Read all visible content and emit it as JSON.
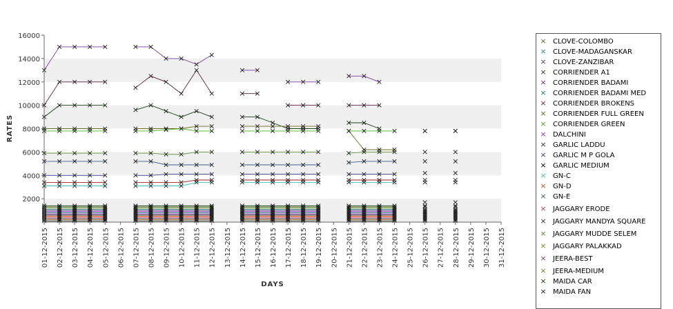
{
  "chart_data": {
    "type": "line",
    "title": "",
    "xlabel": "DAYS",
    "ylabel": "RATES",
    "ylim": [
      0,
      16000
    ],
    "yticks": [
      2000,
      4000,
      6000,
      8000,
      10000,
      12000,
      14000,
      16000
    ],
    "grid": "horizontal bands",
    "legend_position": "right",
    "x": [
      "01-12-2015",
      "02-12-2015",
      "03-12-2015",
      "04-12-2015",
      "05-12-2015",
      "06-12-2015",
      "07-12-2015",
      "08-12-2015",
      "09-12-2015",
      "10-12-2015",
      "11-12-2015",
      "12-12-2015",
      "13-12-2015",
      "14-12-2015",
      "15-12-2015",
      "16-12-2015",
      "17-12-2015",
      "18-12-2015",
      "19-12-2015",
      "20-12-2015",
      "21-12-2015",
      "22-12-2015",
      "23-12-2015",
      "24-12-2015",
      "25-12-2015",
      "26-12-2015",
      "27-12-2015",
      "28-12-2015",
      "29-12-2015",
      "30-12-2015",
      "31-12-2015"
    ],
    "series": [
      {
        "name": "CLOVE-COLOMBO",
        "color": "#556b2f",
        "values": [
          1300,
          1300,
          1300,
          1300,
          1300,
          null,
          1300,
          1300,
          1300,
          1300,
          1300,
          1300,
          null,
          1300,
          1300,
          1300,
          1300,
          1300,
          1300,
          null,
          1300,
          1300,
          1300,
          1300,
          null,
          1300,
          null,
          1300,
          null,
          null,
          null
        ]
      },
      {
        "name": "CLOVE-MADAGANSKAR",
        "color": "#2e8b8b",
        "values": [
          1100,
          1100,
          1100,
          1100,
          1100,
          null,
          1100,
          1100,
          1100,
          1100,
          1100,
          1100,
          null,
          1100,
          1100,
          1100,
          1100,
          1100,
          1100,
          null,
          1100,
          1100,
          1100,
          1100,
          null,
          1100,
          null,
          1100,
          null,
          null,
          null
        ]
      },
      {
        "name": "CLOVE-ZANZIBAR",
        "color": "#5c2e7a",
        "values": [
          1000,
          1000,
          1000,
          1000,
          1000,
          null,
          1000,
          1000,
          1000,
          1000,
          1000,
          1000,
          null,
          1000,
          1000,
          1000,
          1000,
          1000,
          1000,
          null,
          1000,
          1000,
          1000,
          1000,
          null,
          1000,
          null,
          1000,
          null,
          null,
          null
        ]
      },
      {
        "name": "CORRIENDER A1",
        "color": "#1a3d1a",
        "values": [
          9000,
          10000,
          10000,
          10000,
          10000,
          null,
          9600,
          10000,
          9500,
          9000,
          9500,
          9000,
          null,
          9000,
          9000,
          8500,
          8000,
          8000,
          8000,
          null,
          8500,
          8500,
          8000,
          null,
          null,
          null,
          null,
          null,
          null,
          null,
          null
        ]
      },
      {
        "name": "CORRIENDER BADAMI",
        "color": "#7a1fa0",
        "values": [
          900,
          900,
          900,
          900,
          900,
          null,
          900,
          900,
          900,
          900,
          900,
          900,
          null,
          900,
          900,
          900,
          900,
          900,
          900,
          null,
          900,
          900,
          900,
          900,
          null,
          900,
          null,
          900,
          null,
          null,
          null
        ]
      },
      {
        "name": "CORRIENDER BADAMI MED",
        "color": "#1f7a7a",
        "values": [
          800,
          800,
          800,
          800,
          800,
          null,
          800,
          800,
          800,
          800,
          800,
          800,
          null,
          800,
          800,
          800,
          800,
          800,
          800,
          null,
          800,
          800,
          800,
          800,
          null,
          800,
          null,
          800,
          null,
          null,
          null
        ]
      },
      {
        "name": "CORRIENDER BROKENS",
        "color": "#a01f1f",
        "values": [
          3400,
          3400,
          3400,
          3400,
          3400,
          null,
          3400,
          3400,
          3400,
          3400,
          3600,
          3600,
          null,
          3600,
          3600,
          3600,
          3600,
          3600,
          3600,
          null,
          3600,
          3600,
          3600,
          3600,
          null,
          3600,
          null,
          3600,
          null,
          null,
          null
        ]
      },
      {
        "name": "CORRIENDER FULL GREEN",
        "color": "#6b6b1f",
        "values": [
          8000,
          8000,
          8000,
          8000,
          8000,
          null,
          8000,
          8000,
          8000,
          8000,
          8200,
          8200,
          null,
          8200,
          8200,
          8200,
          8200,
          8200,
          8200,
          null,
          7800,
          6200,
          6200,
          6200,
          null,
          7800,
          null,
          7800,
          null,
          null,
          null
        ]
      },
      {
        "name": "CORRIENDER GREEN",
        "color": "#4caf1f",
        "values": [
          7800,
          7800,
          7800,
          7800,
          7800,
          null,
          7800,
          7800,
          7900,
          8000,
          7800,
          7800,
          null,
          7800,
          7800,
          7800,
          7800,
          7800,
          7800,
          null,
          7800,
          7800,
          7800,
          7800,
          null,
          7800,
          null,
          7800,
          null,
          null,
          null
        ]
      },
      {
        "name": "DALCHINI",
        "color": "#9b30c8",
        "values": [
          700,
          700,
          700,
          700,
          700,
          null,
          700,
          700,
          700,
          700,
          700,
          700,
          null,
          700,
          700,
          700,
          700,
          700,
          700,
          null,
          700,
          700,
          700,
          700,
          null,
          700,
          null,
          700,
          null,
          null,
          null
        ]
      },
      {
        "name": "GARLIC LADDU",
        "color": "#5a1e3c",
        "values": [
          10000,
          12000,
          12000,
          12000,
          12000,
          null,
          11500,
          12500,
          12000,
          11000,
          13000,
          11000,
          null,
          11000,
          11000,
          null,
          10000,
          10000,
          10000,
          null,
          10000,
          10000,
          10000,
          null,
          null,
          null,
          null,
          null,
          null,
          null,
          null
        ]
      },
      {
        "name": "GARLIC M P GOLA",
        "color": "#3d3d8c",
        "values": [
          4000,
          4000,
          4000,
          4000,
          4000,
          null,
          4000,
          4000,
          4100,
          4100,
          4100,
          4100,
          null,
          4100,
          4100,
          4100,
          4100,
          4100,
          4100,
          null,
          4100,
          4100,
          4100,
          4100,
          null,
          4200,
          null,
          4200,
          null,
          null,
          null
        ]
      },
      {
        "name": "GARLIC MEDIUM",
        "color": "#000000",
        "values": [
          600,
          600,
          600,
          600,
          600,
          null,
          600,
          600,
          600,
          600,
          600,
          600,
          null,
          600,
          600,
          600,
          600,
          600,
          600,
          null,
          600,
          600,
          600,
          600,
          null,
          600,
          null,
          600,
          null,
          null,
          null
        ]
      },
      {
        "name": "GN-C",
        "color": "#3fbfbf",
        "values": [
          3100,
          3100,
          3100,
          3100,
          3100,
          null,
          3100,
          3100,
          3100,
          3100,
          3400,
          3400,
          null,
          3400,
          3400,
          3400,
          3400,
          3400,
          3400,
          null,
          3400,
          3400,
          3400,
          3400,
          null,
          3400,
          null,
          3400,
          null,
          null,
          null
        ]
      },
      {
        "name": "GN-D",
        "color": "#d2551e",
        "values": [
          500,
          500,
          500,
          500,
          500,
          null,
          500,
          500,
          500,
          500,
          500,
          500,
          null,
          500,
          500,
          500,
          500,
          500,
          500,
          null,
          500,
          500,
          500,
          500,
          null,
          500,
          null,
          500,
          null,
          null,
          null
        ]
      },
      {
        "name": "GN-E",
        "color": "#3c5a8c",
        "values": [
          5200,
          5200,
          5200,
          5200,
          5200,
          null,
          5200,
          5200,
          4900,
          4900,
          4900,
          4900,
          null,
          4900,
          4900,
          4900,
          4900,
          4900,
          4900,
          null,
          5100,
          5200,
          5200,
          5200,
          null,
          5200,
          null,
          5200,
          null,
          null,
          null
        ]
      },
      {
        "name": "JAGGARY ERODE",
        "color": "#c83c5a",
        "values": [
          400,
          400,
          400,
          400,
          400,
          null,
          400,
          400,
          400,
          400,
          400,
          400,
          null,
          400,
          400,
          400,
          400,
          400,
          400,
          null,
          400,
          400,
          400,
          400,
          null,
          400,
          null,
          400,
          null,
          null,
          null
        ]
      },
      {
        "name": "JAGGARY MANDYA SQUARE",
        "color": "#3c1e3c",
        "values": [
          300,
          300,
          300,
          300,
          300,
          null,
          300,
          300,
          300,
          300,
          300,
          300,
          null,
          300,
          300,
          300,
          300,
          300,
          300,
          null,
          300,
          300,
          300,
          300,
          null,
          300,
          null,
          300,
          null,
          null,
          null
        ]
      },
      {
        "name": "JAGGARY MUDDE SELEM",
        "color": "#5a8c3c",
        "values": [
          5900,
          5900,
          5900,
          5900,
          5900,
          null,
          5900,
          5900,
          5800,
          5800,
          6000,
          6000,
          null,
          6000,
          6000,
          6000,
          6000,
          6000,
          6000,
          null,
          5900,
          6000,
          6000,
          6000,
          null,
          6000,
          null,
          6000,
          null,
          null,
          null
        ]
      },
      {
        "name": "JAGGARY PALAKKAD",
        "color": "#a0781e",
        "values": [
          200,
          200,
          200,
          200,
          200,
          null,
          200,
          200,
          200,
          200,
          200,
          200,
          null,
          200,
          200,
          200,
          200,
          200,
          200,
          null,
          200,
          200,
          200,
          200,
          null,
          200,
          null,
          200,
          null,
          null,
          null
        ]
      },
      {
        "name": "JEERA-BEST",
        "color": "#7a3ca0",
        "values": [
          13000,
          15000,
          15000,
          15000,
          15000,
          null,
          15000,
          15000,
          14000,
          14000,
          13500,
          14300,
          null,
          13000,
          13000,
          null,
          12000,
          12000,
          12000,
          null,
          12500,
          12500,
          12000,
          null,
          null,
          null,
          null,
          null,
          null,
          null,
          null
        ]
      },
      {
        "name": "JEERA-MEDIUM",
        "color": "#6b8c1e",
        "values": [
          1200,
          1200,
          1200,
          1200,
          1200,
          null,
          1200,
          1200,
          1200,
          1200,
          1200,
          1200,
          null,
          1200,
          1200,
          1200,
          1200,
          1200,
          1200,
          null,
          1200,
          1200,
          1200,
          1200,
          null,
          1700,
          null,
          1700,
          null,
          null,
          null
        ]
      },
      {
        "name": "MAIDA CAR",
        "color": "#0f3c0f",
        "values": [
          1400,
          1400,
          1400,
          1400,
          1400,
          null,
          1400,
          1400,
          1400,
          1400,
          1400,
          1400,
          null,
          1400,
          1400,
          1400,
          1400,
          1400,
          1400,
          null,
          1400,
          1400,
          1400,
          1400,
          null,
          1400,
          null,
          1400,
          null,
          null,
          null
        ]
      },
      {
        "name": "MAIDA FAN",
        "color": "#1e1e1e",
        "values": [
          100,
          100,
          100,
          100,
          100,
          null,
          100,
          100,
          100,
          100,
          100,
          100,
          null,
          100,
          100,
          100,
          100,
          100,
          100,
          null,
          100,
          100,
          100,
          100,
          null,
          100,
          null,
          100,
          null,
          null,
          null
        ]
      }
    ]
  }
}
